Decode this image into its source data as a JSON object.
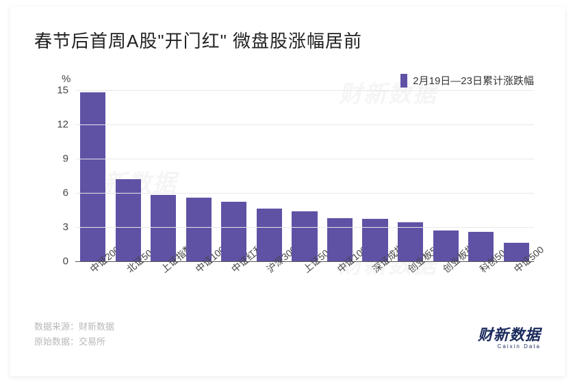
{
  "title": "春节后首周A股\"开门红\"  微盘股涨幅居前",
  "chart": {
    "type": "bar",
    "yunit": "%",
    "ylim": [
      0,
      15
    ],
    "ytick_step": 3,
    "yticks": [
      0,
      3,
      6,
      9,
      12,
      15
    ],
    "axis_color": "#555555",
    "grid_color": "#e8e8e8",
    "baseline_width": 1,
    "bar_color": "#5f52a5",
    "bar_width_ratio": 0.72,
    "label_fontsize": 15,
    "xlabel_fontsize": 14,
    "xlabel_rotation_deg": -40,
    "legend": {
      "label": "2月19日—23日累计涨跌幅",
      "swatch_color": "#5f52a5"
    },
    "categories": [
      "中证2000",
      "北证50",
      "上证指数",
      "中证1000",
      "中证红利",
      "沪深300",
      "上证50",
      "中证100",
      "深证成指",
      "创业板50",
      "创业板指",
      "科创50",
      "中证500"
    ],
    "values": [
      14.8,
      7.2,
      5.8,
      5.6,
      5.2,
      4.6,
      4.4,
      3.8,
      3.7,
      3.4,
      2.7,
      2.6,
      1.6
    ]
  },
  "footer": {
    "source_label": "数据来源：",
    "source_value": "财新数据",
    "raw_label": "原始数据：",
    "raw_value": "交易所"
  },
  "brand": {
    "name": "财新数据",
    "sub": "Caixin Data"
  },
  "watermark": "财新数据"
}
